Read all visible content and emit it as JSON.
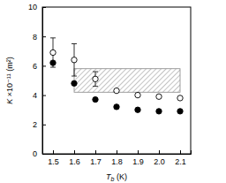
{
  "chart_data": {
    "type": "scatter",
    "x_label": "Tb (K)",
    "y_label": "K ×10⁻¹¹ (m²)",
    "x": [
      1.5,
      1.6,
      1.7,
      1.8,
      1.9,
      2.0,
      2.1
    ],
    "series": [
      {
        "color": "#000000",
        "marker": "circle-open",
        "values": [
          6.9,
          6.4,
          5.1,
          4.3,
          4.0,
          3.9,
          3.8
        ],
        "errors": [
          1.0,
          1.1,
          0.5,
          null,
          null,
          null,
          null
        ]
      },
      {
        "color": "#000000",
        "marker": "circle",
        "values": [
          6.2,
          4.8,
          3.7,
          3.2,
          3.0,
          2.9,
          2.9
        ]
      }
    ],
    "band": {
      "x": [
        1.6,
        2.1
      ],
      "y": [
        4.2,
        5.8
      ]
    },
    "xlim": [
      1.45,
      2.15
    ],
    "ylim": [
      0,
      10
    ],
    "xticks": [
      1.5,
      1.6,
      1.7,
      1.8,
      1.9,
      {
        "value": 2.0,
        "label": "2.0"
      },
      2.1
    ],
    "yticks": [
      0,
      2,
      4,
      6,
      8,
      10
    ],
    "grid": false
  }
}
